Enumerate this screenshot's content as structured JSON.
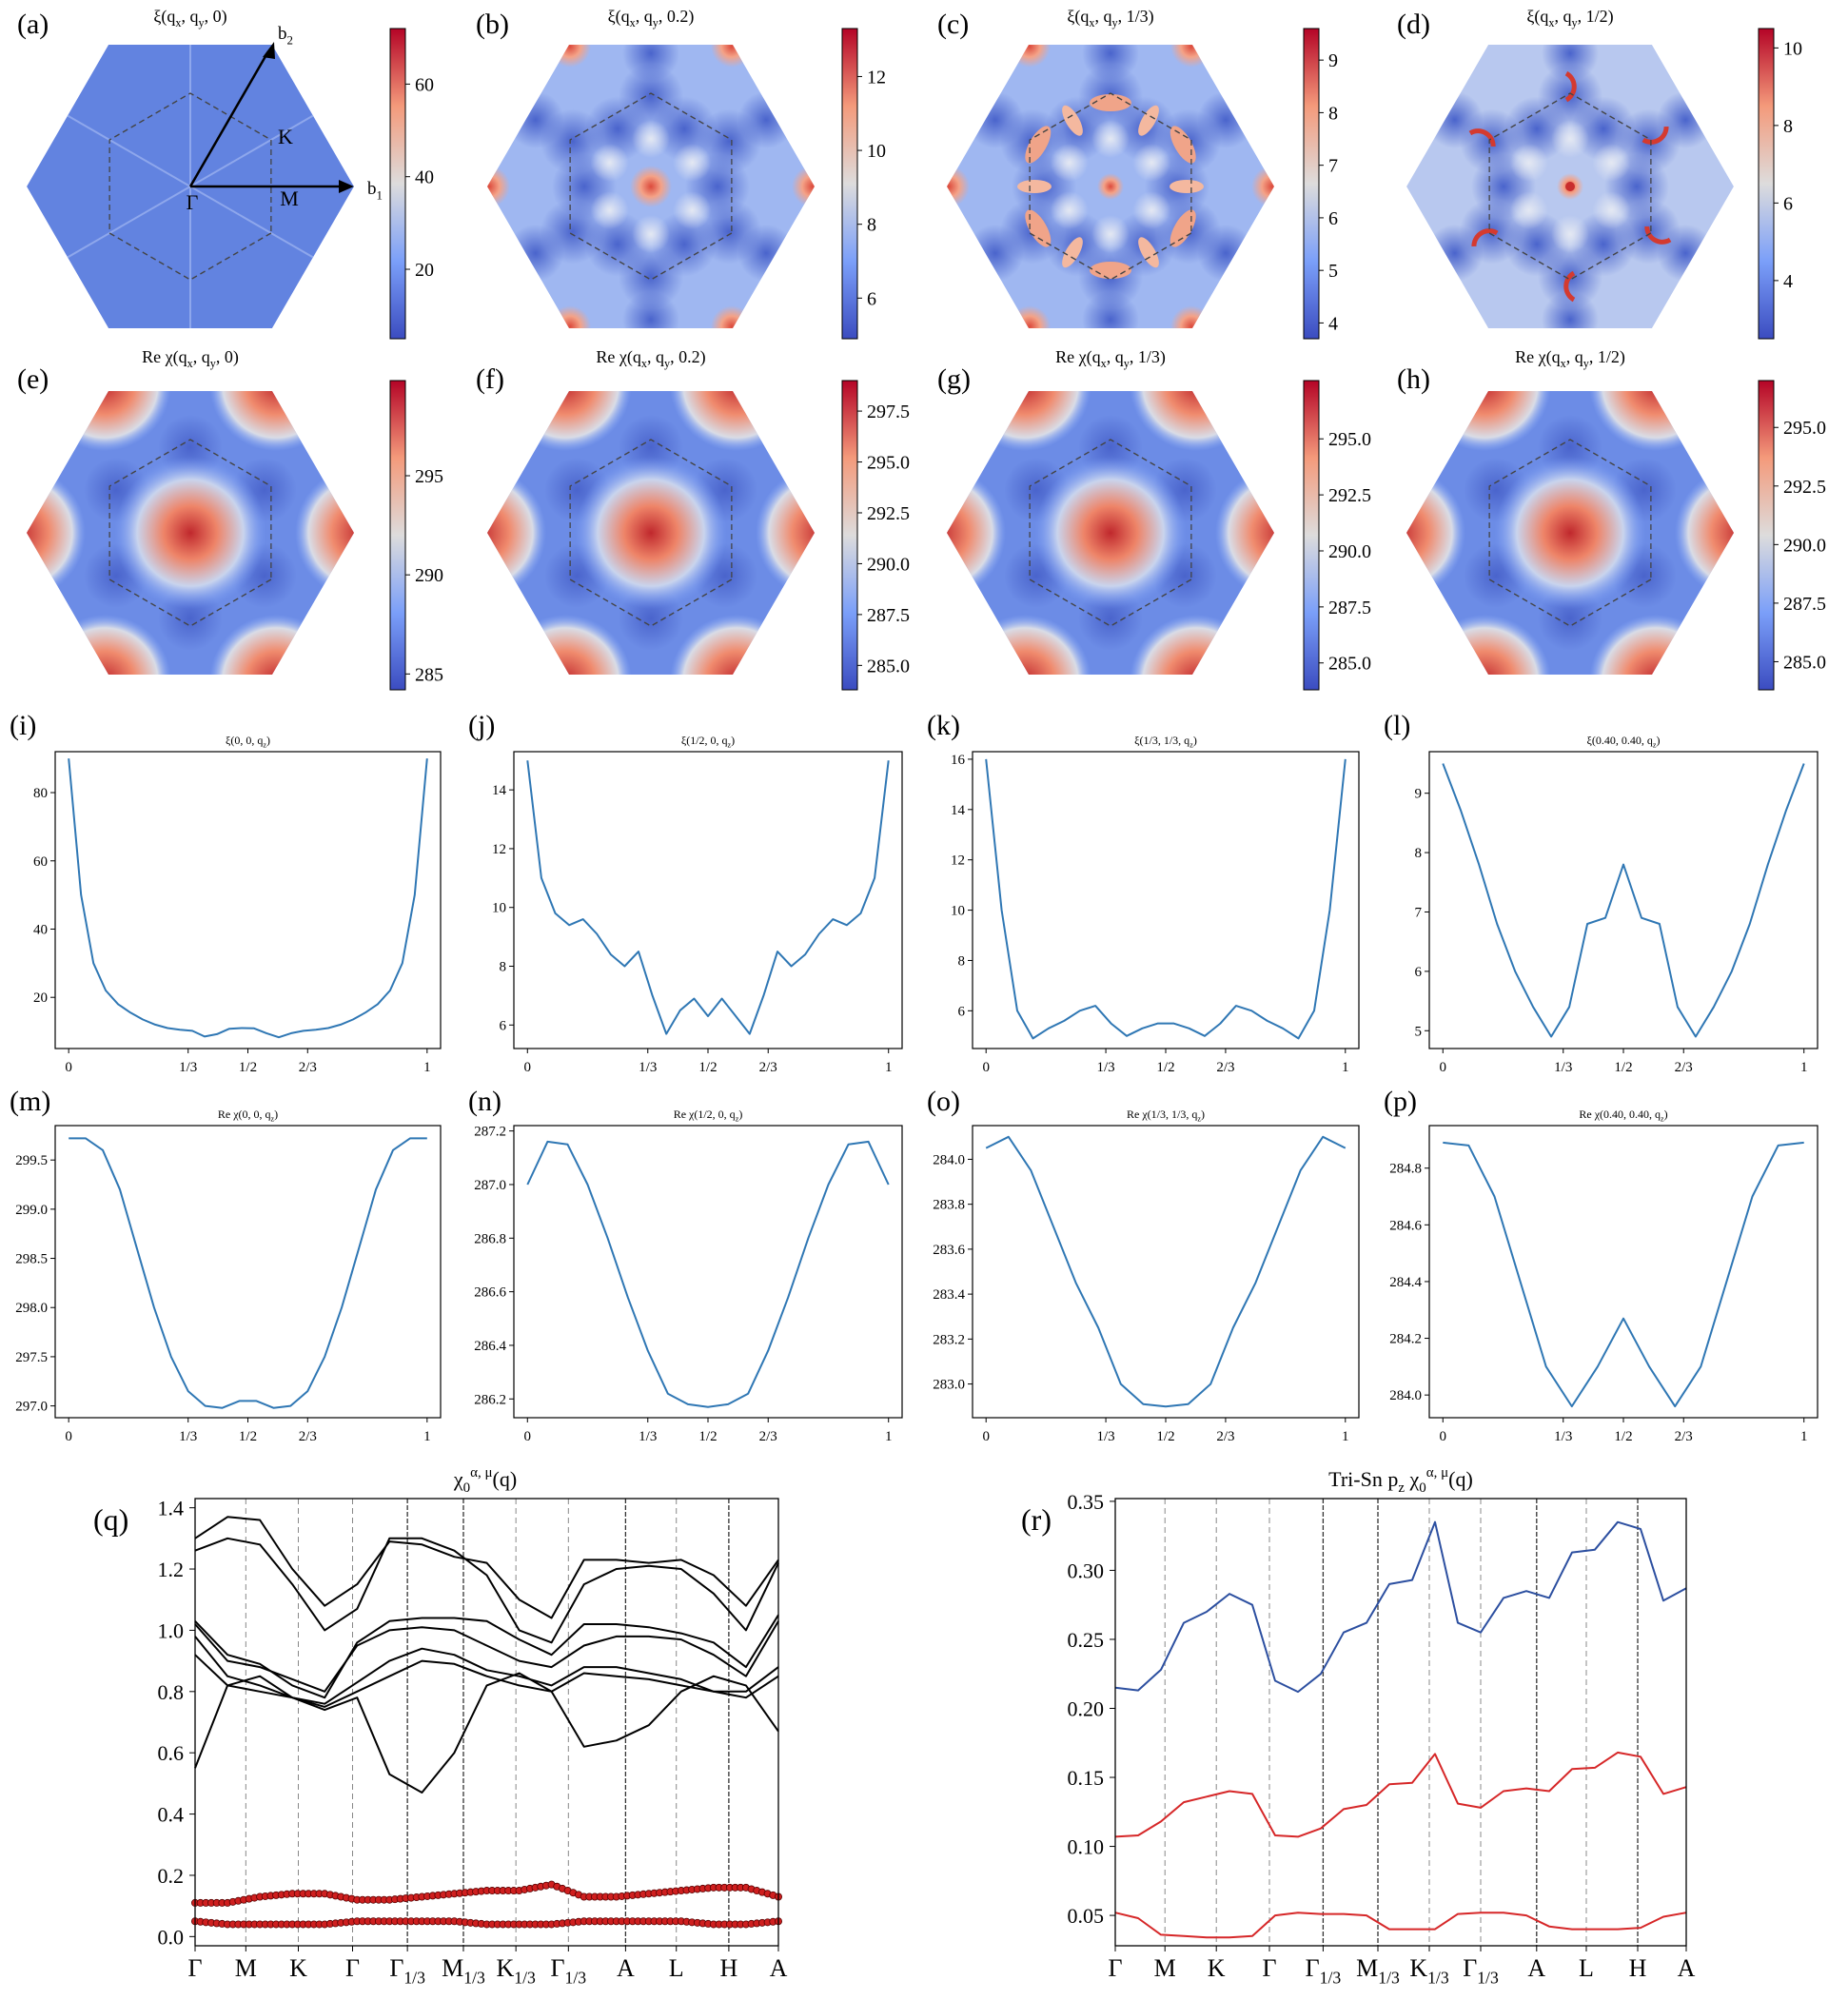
{
  "heatmap_rows": [
    {
      "kind": "xi",
      "panels": [
        {
          "letter": "(a)",
          "title": [
            "ξ(q",
            "x",
            ", q",
            "y",
            ", 0)"
          ],
          "cbar_ticks": [
            "20",
            "40",
            "60"
          ],
          "cbar_range": [
            5,
            72
          ],
          "vectors": {
            "b1": "b",
            "b1_sub": "1",
            "b2": "b",
            "b2_sub": "2",
            "gamma": "Γ",
            "K": "K",
            "M": "M"
          }
        },
        {
          "letter": "(b)",
          "title": [
            "ξ(q",
            "x",
            ", q",
            "y",
            ", 0.2)"
          ],
          "cbar_ticks": [
            "6",
            "8",
            "10",
            "12"
          ],
          "cbar_range": [
            4.9,
            13.3
          ]
        },
        {
          "letter": "(c)",
          "title": [
            "ξ(q",
            "x",
            ", q",
            "y",
            ", 1/3)"
          ],
          "cbar_ticks": [
            "4",
            "5",
            "6",
            "7",
            "8",
            "9"
          ],
          "cbar_range": [
            3.7,
            9.6
          ]
        },
        {
          "letter": "(d)",
          "title": [
            "ξ(q",
            "x",
            ", q",
            "y",
            ", 1/2)"
          ],
          "cbar_ticks": [
            "4",
            "6",
            "8",
            "10"
          ],
          "cbar_range": [
            2.5,
            10.5
          ]
        }
      ]
    },
    {
      "kind": "chi",
      "panels": [
        {
          "letter": "(e)",
          "title": [
            "Re χ(q",
            "x",
            ", q",
            "y",
            ", 0)"
          ],
          "cbar_ticks": [
            "285",
            "290",
            "295"
          ],
          "cbar_range": [
            284.2,
            299.8
          ]
        },
        {
          "letter": "(f)",
          "title": [
            "Re χ(q",
            "x",
            ", q",
            "y",
            ", 0.2)"
          ],
          "cbar_ticks": [
            "285.0",
            "287.5",
            "290.0",
            "292.5",
            "295.0",
            "297.5"
          ],
          "cbar_range": [
            283.8,
            299.0
          ]
        },
        {
          "letter": "(g)",
          "title": [
            "Re χ(q",
            "x",
            ", q",
            "y",
            ", 1/3)"
          ],
          "cbar_ticks": [
            "285.0",
            "287.5",
            "290.0",
            "292.5",
            "295.0"
          ],
          "cbar_range": [
            283.8,
            297.6
          ]
        },
        {
          "letter": "(h)",
          "title": [
            "Re χ(q",
            "x",
            ", q",
            "y",
            ", 1/2)"
          ],
          "cbar_ticks": [
            "285.0",
            "287.5",
            "290.0",
            "292.5",
            "295.0"
          ],
          "cbar_range": [
            283.8,
            297.0
          ]
        }
      ]
    }
  ],
  "line_rows": [
    {
      "panels": [
        {
          "letter": "(i)",
          "title": [
            "ξ(0, 0, q",
            "z",
            ")"
          ],
          "yticks": [
            20,
            40,
            60,
            80
          ],
          "ylim": [
            5,
            92
          ],
          "y": [
            90,
            50,
            30,
            22,
            18,
            15.5,
            13.5,
            12,
            11,
            10.5,
            10.2,
            8.5,
            9.2,
            10.8,
            11,
            10.9,
            9.5,
            8.3,
            9.5,
            10.2,
            10.5,
            11,
            12,
            13.5,
            15.5,
            18,
            22,
            30,
            50,
            90
          ]
        },
        {
          "letter": "(j)",
          "title": [
            "ξ(1/2, 0, q",
            "z",
            ")"
          ],
          "yticks": [
            6,
            8,
            10,
            12,
            14
          ],
          "ylim": [
            5.2,
            15.3
          ],
          "y": [
            15,
            11,
            9.8,
            9.4,
            9.6,
            9.1,
            8.4,
            8.0,
            8.5,
            7.0,
            5.7,
            6.5,
            6.9,
            6.3,
            6.9,
            6.3,
            5.7,
            7.0,
            8.5,
            8.0,
            8.4,
            9.1,
            9.6,
            9.4,
            9.8,
            11,
            15
          ]
        },
        {
          "letter": "(k)",
          "title": [
            "ξ(1/3, 1/3, q",
            "z",
            ")"
          ],
          "yticks": [
            6,
            8,
            10,
            12,
            14,
            16
          ],
          "ylim": [
            4.5,
            16.3
          ],
          "y": [
            16,
            10,
            6,
            4.9,
            5.3,
            5.6,
            6.0,
            6.2,
            5.5,
            5.0,
            5.3,
            5.5,
            5.5,
            5.3,
            5.0,
            5.5,
            6.2,
            6.0,
            5.6,
            5.3,
            4.9,
            6,
            10,
            16
          ]
        },
        {
          "letter": "(l)",
          "title": [
            "ξ(0.40, 0.40, q",
            "z",
            ")"
          ],
          "yticks": [
            5,
            6,
            7,
            8,
            9
          ],
          "ylim": [
            4.7,
            9.7
          ],
          "y": [
            9.5,
            8.7,
            7.8,
            6.8,
            6.0,
            5.4,
            4.9,
            5.4,
            6.8,
            6.9,
            7.8,
            6.9,
            6.8,
            5.4,
            4.9,
            5.4,
            6.0,
            6.8,
            7.8,
            8.7,
            9.5
          ]
        }
      ]
    },
    {
      "panels": [
        {
          "letter": "(m)",
          "title": [
            "Re χ(0, 0, q",
            "z",
            ")"
          ],
          "yticks": [
            "297.0",
            "297.5",
            "298.0",
            "298.5",
            "299.0",
            "299.5"
          ],
          "ylim": [
            296.88,
            299.85
          ],
          "y": [
            299.72,
            299.72,
            299.6,
            299.2,
            298.6,
            298.0,
            297.5,
            297.15,
            297.0,
            296.98,
            297.05,
            297.05,
            296.98,
            297.0,
            297.15,
            297.5,
            298.0,
            298.6,
            299.2,
            299.6,
            299.72,
            299.72
          ]
        },
        {
          "letter": "(n)",
          "title": [
            "Re χ(1/2, 0, q",
            "z",
            ")"
          ],
          "yticks": [
            "286.2",
            "286.4",
            "286.6",
            "286.8",
            "287.0",
            "287.2"
          ],
          "ylim": [
            286.13,
            287.22
          ],
          "y": [
            287.0,
            287.16,
            287.15,
            287.0,
            286.8,
            286.58,
            286.38,
            286.22,
            286.18,
            286.17,
            286.18,
            286.22,
            286.38,
            286.58,
            286.8,
            287.0,
            287.15,
            287.16,
            287.0
          ]
        },
        {
          "letter": "(o)",
          "title": [
            "Re χ(1/3, 1/3, q",
            "z",
            ")"
          ],
          "yticks": [
            "283.0",
            "283.2",
            "283.4",
            "283.6",
            "283.8",
            "284.0"
          ],
          "ylim": [
            282.85,
            284.15
          ],
          "y": [
            284.05,
            284.1,
            283.95,
            283.7,
            283.45,
            283.25,
            283.0,
            282.91,
            282.9,
            282.91,
            283.0,
            283.25,
            283.45,
            283.7,
            283.95,
            284.1,
            284.05
          ]
        },
        {
          "letter": "(p)",
          "title": [
            "Re χ(0.40, 0.40, q",
            "z",
            ")"
          ],
          "yticks": [
            "284.0",
            "284.2",
            "284.4",
            "284.6",
            "284.8"
          ],
          "ylim": [
            283.92,
            284.95
          ],
          "y": [
            284.89,
            284.88,
            284.7,
            284.4,
            284.1,
            283.96,
            284.1,
            284.27,
            284.1,
            283.96,
            284.1,
            284.4,
            284.7,
            284.88,
            284.89
          ]
        }
      ]
    }
  ],
  "line_xticks": [
    "0",
    "1/3",
    "1/2",
    "2/3",
    "1"
  ],
  "line_color": "#2f77b4",
  "path_labels": [
    {
      "t": "Γ"
    },
    {
      "t": "M"
    },
    {
      "t": "K"
    },
    {
      "t": "Γ"
    },
    {
      "t": "Γ",
      "s": "1/3"
    },
    {
      "t": "M",
      "s": "1/3"
    },
    {
      "t": "K",
      "s": "1/3"
    },
    {
      "t": "Γ",
      "s": "1/3"
    },
    {
      "t": "A"
    },
    {
      "t": "L"
    },
    {
      "t": "H"
    },
    {
      "t": "A"
    }
  ],
  "chart_data": [
    {
      "letter": "(q)",
      "type": "line",
      "title": [
        "χ",
        "0",
        "α, μ",
        "(q)"
      ],
      "yticks": [
        "0.0",
        "0.2",
        "0.4",
        "0.6",
        "0.8",
        "1.0",
        "1.2",
        "1.4"
      ],
      "ylim": [
        -0.03,
        1.43
      ],
      "series": [
        {
          "color": "#000000",
          "values": [
            1.3,
            1.37,
            1.36,
            1.2,
            1.08,
            1.15,
            1.29,
            1.28,
            1.24,
            1.22,
            1.1,
            1.04,
            1.23,
            1.23,
            1.22,
            1.23,
            1.18,
            1.08,
            1.23
          ]
        },
        {
          "color": "#000000",
          "values": [
            1.26,
            1.3,
            1.28,
            1.15,
            1.0,
            1.07,
            1.3,
            1.3,
            1.26,
            1.18,
            1.0,
            0.96,
            1.15,
            1.2,
            1.21,
            1.2,
            1.12,
            1.0,
            1.22
          ]
        },
        {
          "color": "#000000",
          "values": [
            1.03,
            0.92,
            0.89,
            0.82,
            0.78,
            0.96,
            1.03,
            1.04,
            1.04,
            1.03,
            0.97,
            0.92,
            1.02,
            1.02,
            1.01,
            0.99,
            0.96,
            0.88,
            1.05
          ]
        },
        {
          "color": "#000000",
          "values": [
            1.02,
            0.9,
            0.88,
            0.84,
            0.8,
            0.95,
            1.0,
            1.01,
            1.0,
            0.95,
            0.9,
            0.88,
            0.95,
            0.98,
            0.98,
            0.97,
            0.92,
            0.85,
            1.03
          ]
        },
        {
          "color": "#000000",
          "values": [
            0.98,
            0.85,
            0.82,
            0.78,
            0.76,
            0.83,
            0.9,
            0.94,
            0.92,
            0.87,
            0.85,
            0.82,
            0.88,
            0.88,
            0.86,
            0.84,
            0.8,
            0.8,
            0.88
          ]
        },
        {
          "color": "#000000",
          "values": [
            0.92,
            0.82,
            0.8,
            0.78,
            0.75,
            0.8,
            0.85,
            0.9,
            0.89,
            0.85,
            0.82,
            0.8,
            0.86,
            0.85,
            0.84,
            0.82,
            0.8,
            0.78,
            0.85
          ]
        },
        {
          "color": "#000000",
          "values": [
            0.55,
            0.82,
            0.85,
            0.78,
            0.74,
            0.78,
            0.53,
            0.47,
            0.6,
            0.82,
            0.86,
            0.8,
            0.62,
            0.64,
            0.69,
            0.8,
            0.85,
            0.82,
            0.67
          ]
        },
        {
          "color": "#d62728",
          "marker": true,
          "values": [
            0.11,
            0.11,
            0.13,
            0.14,
            0.14,
            0.12,
            0.12,
            0.13,
            0.14,
            0.15,
            0.15,
            0.17,
            0.13,
            0.13,
            0.14,
            0.15,
            0.16,
            0.16,
            0.13
          ]
        },
        {
          "color": "#d62728",
          "marker": true,
          "values": [
            0.05,
            0.04,
            0.04,
            0.04,
            0.04,
            0.05,
            0.05,
            0.05,
            0.05,
            0.04,
            0.04,
            0.04,
            0.05,
            0.05,
            0.05,
            0.05,
            0.04,
            0.04,
            0.05
          ]
        }
      ]
    },
    {
      "letter": "(r)",
      "type": "line",
      "title": [
        "Tri-Sn p",
        "z",
        "χ",
        "0",
        "α, μ",
        "(q)"
      ],
      "yticks": [
        "0.05",
        "0.10",
        "0.15",
        "0.20",
        "0.25",
        "0.30",
        "0.35"
      ],
      "ylim": [
        0.028,
        0.352
      ],
      "series": [
        {
          "color": "#2c4fa0",
          "values": [
            0.215,
            0.213,
            0.228,
            0.262,
            0.27,
            0.283,
            0.275,
            0.22,
            0.212,
            0.225,
            0.255,
            0.262,
            0.29,
            0.293,
            0.335,
            0.262,
            0.255,
            0.28,
            0.285,
            0.28,
            0.313,
            0.315,
            0.335,
            0.33,
            0.278,
            0.287
          ]
        },
        {
          "color": "#d62728",
          "values": [
            0.107,
            0.108,
            0.118,
            0.132,
            0.136,
            0.14,
            0.138,
            0.108,
            0.107,
            0.113,
            0.127,
            0.13,
            0.145,
            0.146,
            0.167,
            0.131,
            0.128,
            0.14,
            0.142,
            0.14,
            0.156,
            0.157,
            0.168,
            0.165,
            0.138,
            0.143
          ]
        },
        {
          "color": "#d62728",
          "values": [
            0.052,
            0.048,
            0.036,
            0.035,
            0.034,
            0.034,
            0.035,
            0.05,
            0.052,
            0.051,
            0.051,
            0.05,
            0.04,
            0.04,
            0.04,
            0.051,
            0.052,
            0.052,
            0.05,
            0.042,
            0.04,
            0.04,
            0.04,
            0.041,
            0.049,
            0.052
          ]
        }
      ]
    }
  ]
}
